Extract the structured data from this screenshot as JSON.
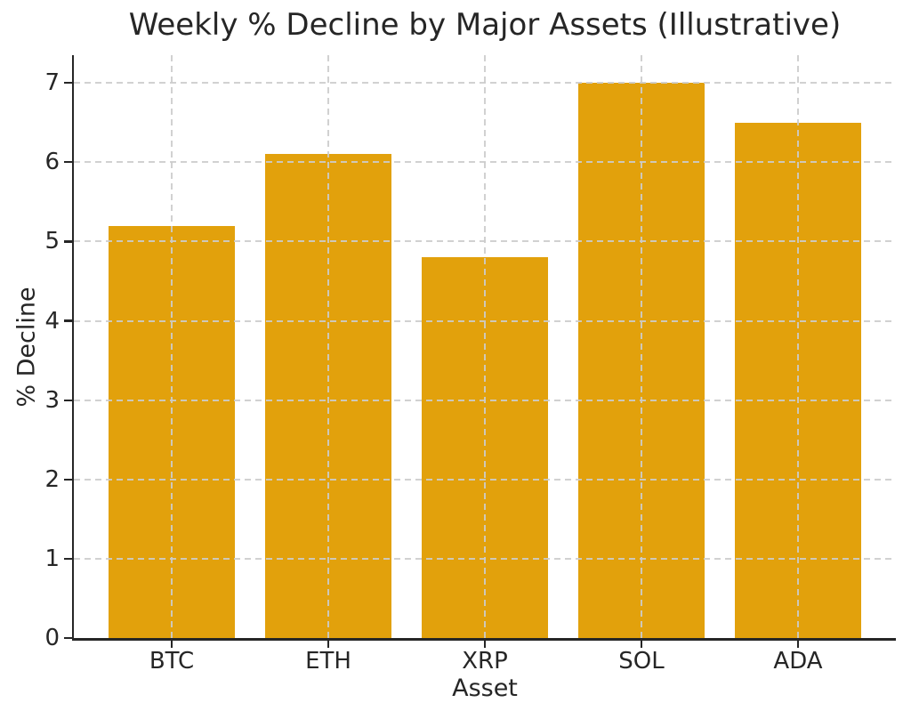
{
  "chart_data": {
    "type": "bar",
    "title": "Weekly % Decline by Major Assets (Illustrative)",
    "xlabel": "Asset",
    "ylabel": "% Decline",
    "categories": [
      "BTC",
      "ETH",
      "XRP",
      "SOL",
      "ADA"
    ],
    "values": [
      5.2,
      6.1,
      4.8,
      7.0,
      6.5
    ],
    "ylim": [
      0,
      7.35
    ],
    "yticks": [
      0,
      1,
      2,
      3,
      4,
      5,
      6,
      7
    ],
    "grid": {
      "visible": true,
      "style": "dashed",
      "axes": "both",
      "drawn_above_bars": true
    },
    "legend": "none",
    "colors": {
      "bar": "#E2A10C",
      "grid": "#CCCCCC",
      "text": "#262626",
      "spine": "#262626",
      "background": "#FFFFFF"
    }
  }
}
